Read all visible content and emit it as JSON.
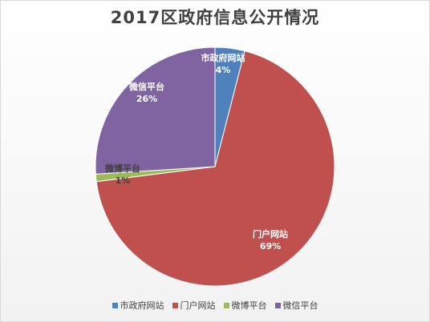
{
  "chart_data": {
    "type": "pie",
    "title": "2017区政府信息公开情况",
    "slices": [
      {
        "label": "市政府网站",
        "value": 4,
        "percent_label": "4%",
        "color": "#4F81BD"
      },
      {
        "label": "门户网站",
        "value": 69,
        "percent_label": "69%",
        "color": "#C0504D"
      },
      {
        "label": "微博平台",
        "value": 1,
        "percent_label": "1%",
        "color": "#9BBB59"
      },
      {
        "label": "微信平台",
        "value": 26,
        "percent_label": "26%",
        "color": "#8064A2"
      }
    ],
    "legend_position": "bottom"
  }
}
